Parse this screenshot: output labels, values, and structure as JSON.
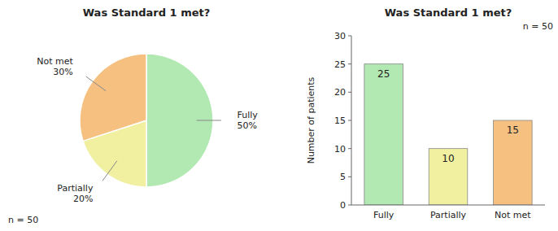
{
  "chart_data": [
    {
      "type": "pie",
      "title": "Was Standard 1 met?",
      "categories": [
        "Fully",
        "Partially",
        "Not met"
      ],
      "values": [
        50,
        20,
        30
      ],
      "value_labels": [
        "50%",
        "20%",
        "30%"
      ],
      "colors": [
        "#b2e8b2",
        "#f0f0a0",
        "#f5c080"
      ],
      "data_labels": true,
      "annotations": [
        "n = 50"
      ]
    },
    {
      "type": "bar",
      "title": "Was Standard 1 met?",
      "categories": [
        "Fully",
        "Partially",
        "Not met"
      ],
      "values": [
        25,
        10,
        15
      ],
      "colors": [
        "#b2e8b2",
        "#f0f0a0",
        "#f5c080"
      ],
      "ylabel": "Number of patients",
      "ylim": [
        0,
        30
      ],
      "yticks": [
        0,
        5,
        10,
        15,
        20,
        25,
        30
      ],
      "data_labels": true,
      "annotations": [
        "n = 50"
      ]
    }
  ]
}
